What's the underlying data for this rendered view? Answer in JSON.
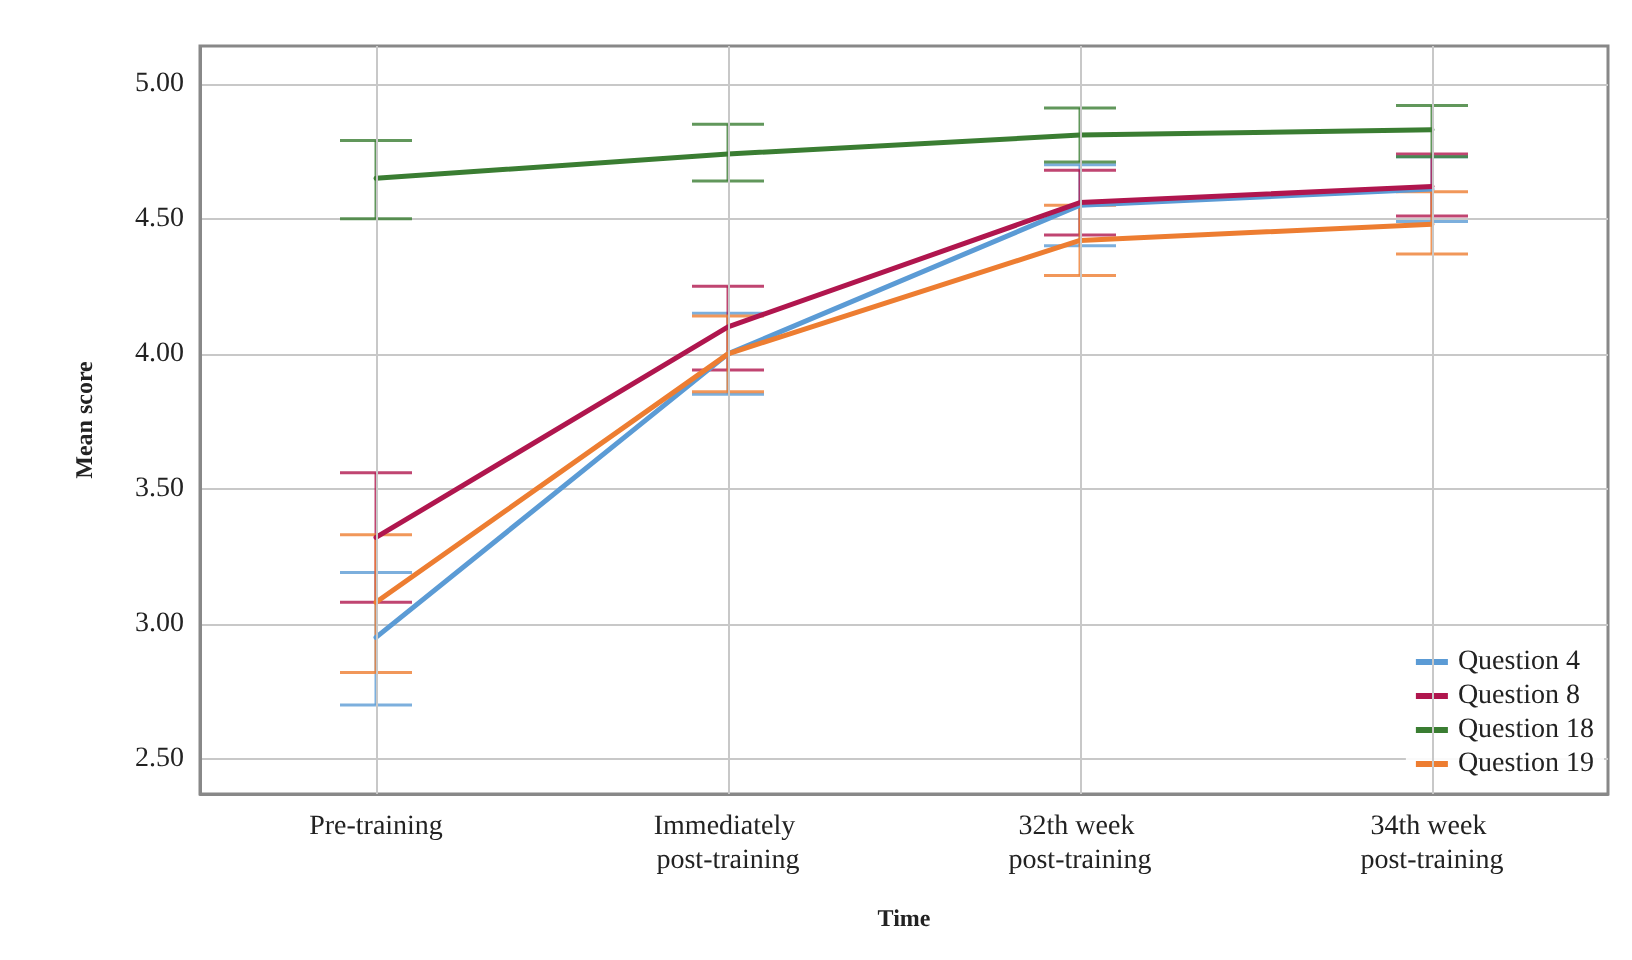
{
  "chart_data": {
    "type": "line",
    "xlabel": "Time",
    "ylabel": "Mean score",
    "categories": [
      "Pre-training",
      "Immediately post-training",
      "32th week post-training",
      "34th week post-training"
    ],
    "series": [
      {
        "name": "Question 4",
        "color": "#5b9bd5",
        "values": [
          2.95,
          4.0,
          4.55,
          4.61
        ],
        "errors": [
          [
            2.7,
            3.19
          ],
          [
            3.85,
            4.15
          ],
          [
            4.4,
            4.7
          ],
          [
            4.49,
            4.73
          ]
        ]
      },
      {
        "name": "Question 8",
        "color": "#b0164e",
        "values": [
          3.32,
          4.1,
          4.56,
          4.62
        ],
        "errors": [
          [
            3.08,
            3.56
          ],
          [
            3.94,
            4.25
          ],
          [
            4.44,
            4.68
          ],
          [
            4.51,
            4.74
          ]
        ]
      },
      {
        "name": "Question 18",
        "color": "#3a7d32",
        "values": [
          4.65,
          4.74,
          4.81,
          4.83
        ],
        "errors": [
          [
            4.5,
            4.79
          ],
          [
            4.64,
            4.85
          ],
          [
            4.71,
            4.91
          ],
          [
            4.73,
            4.92
          ]
        ]
      },
      {
        "name": "Question 19",
        "color": "#ed7d31",
        "values": [
          3.08,
          4.0,
          4.42,
          4.48
        ],
        "errors": [
          [
            2.82,
            3.33
          ],
          [
            3.86,
            4.14
          ],
          [
            4.29,
            4.55
          ],
          [
            4.37,
            4.6
          ]
        ]
      }
    ],
    "ylim": [
      2.37,
      5.14
    ],
    "yticks": [
      {
        "value": 2.5,
        "label": "2.50"
      },
      {
        "value": 3.0,
        "label": "3.00"
      },
      {
        "value": 3.5,
        "label": "3.50"
      },
      {
        "value": 4.0,
        "label": "4.00"
      },
      {
        "value": 4.5,
        "label": "4.50"
      },
      {
        "value": 5.0,
        "label": "5.00"
      }
    ],
    "grid": true,
    "legend": "bottom right",
    "marker": "none",
    "line_style": "solid"
  }
}
